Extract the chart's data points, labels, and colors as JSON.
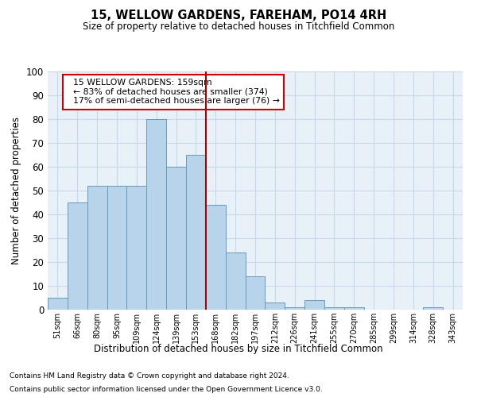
{
  "title": "15, WELLOW GARDENS, FAREHAM, PO14 4RH",
  "subtitle": "Size of property relative to detached houses in Titchfield Common",
  "xlabel": "Distribution of detached houses by size in Titchfield Common",
  "ylabel": "Number of detached properties",
  "footnote1": "Contains HM Land Registry data © Crown copyright and database right 2024.",
  "footnote2": "Contains public sector information licensed under the Open Government Licence v3.0.",
  "bar_labels": [
    "51sqm",
    "66sqm",
    "80sqm",
    "95sqm",
    "109sqm",
    "124sqm",
    "139sqm",
    "153sqm",
    "168sqm",
    "182sqm",
    "197sqm",
    "212sqm",
    "226sqm",
    "241sqm",
    "255sqm",
    "270sqm",
    "285sqm",
    "299sqm",
    "314sqm",
    "328sqm",
    "343sqm"
  ],
  "bar_values": [
    5,
    45,
    52,
    52,
    52,
    80,
    60,
    65,
    44,
    24,
    14,
    3,
    1,
    4,
    1,
    1,
    0,
    0,
    0,
    1,
    0
  ],
  "bar_color": "#b8d4ea",
  "bar_edge_color": "#6699bb",
  "vline_x": 7.5,
  "vline_color": "#aa0000",
  "annotation_text": "  15 WELLOW GARDENS: 159sqm\n  ← 83% of detached houses are smaller (374)\n  17% of semi-detached houses are larger (76) →",
  "annotation_box_color": "#cc0000",
  "ylim": [
    0,
    100
  ],
  "yticks": [
    0,
    10,
    20,
    30,
    40,
    50,
    60,
    70,
    80,
    90,
    100
  ],
  "grid_color": "#c8d8ea",
  "background_color": "#e8f0f8"
}
